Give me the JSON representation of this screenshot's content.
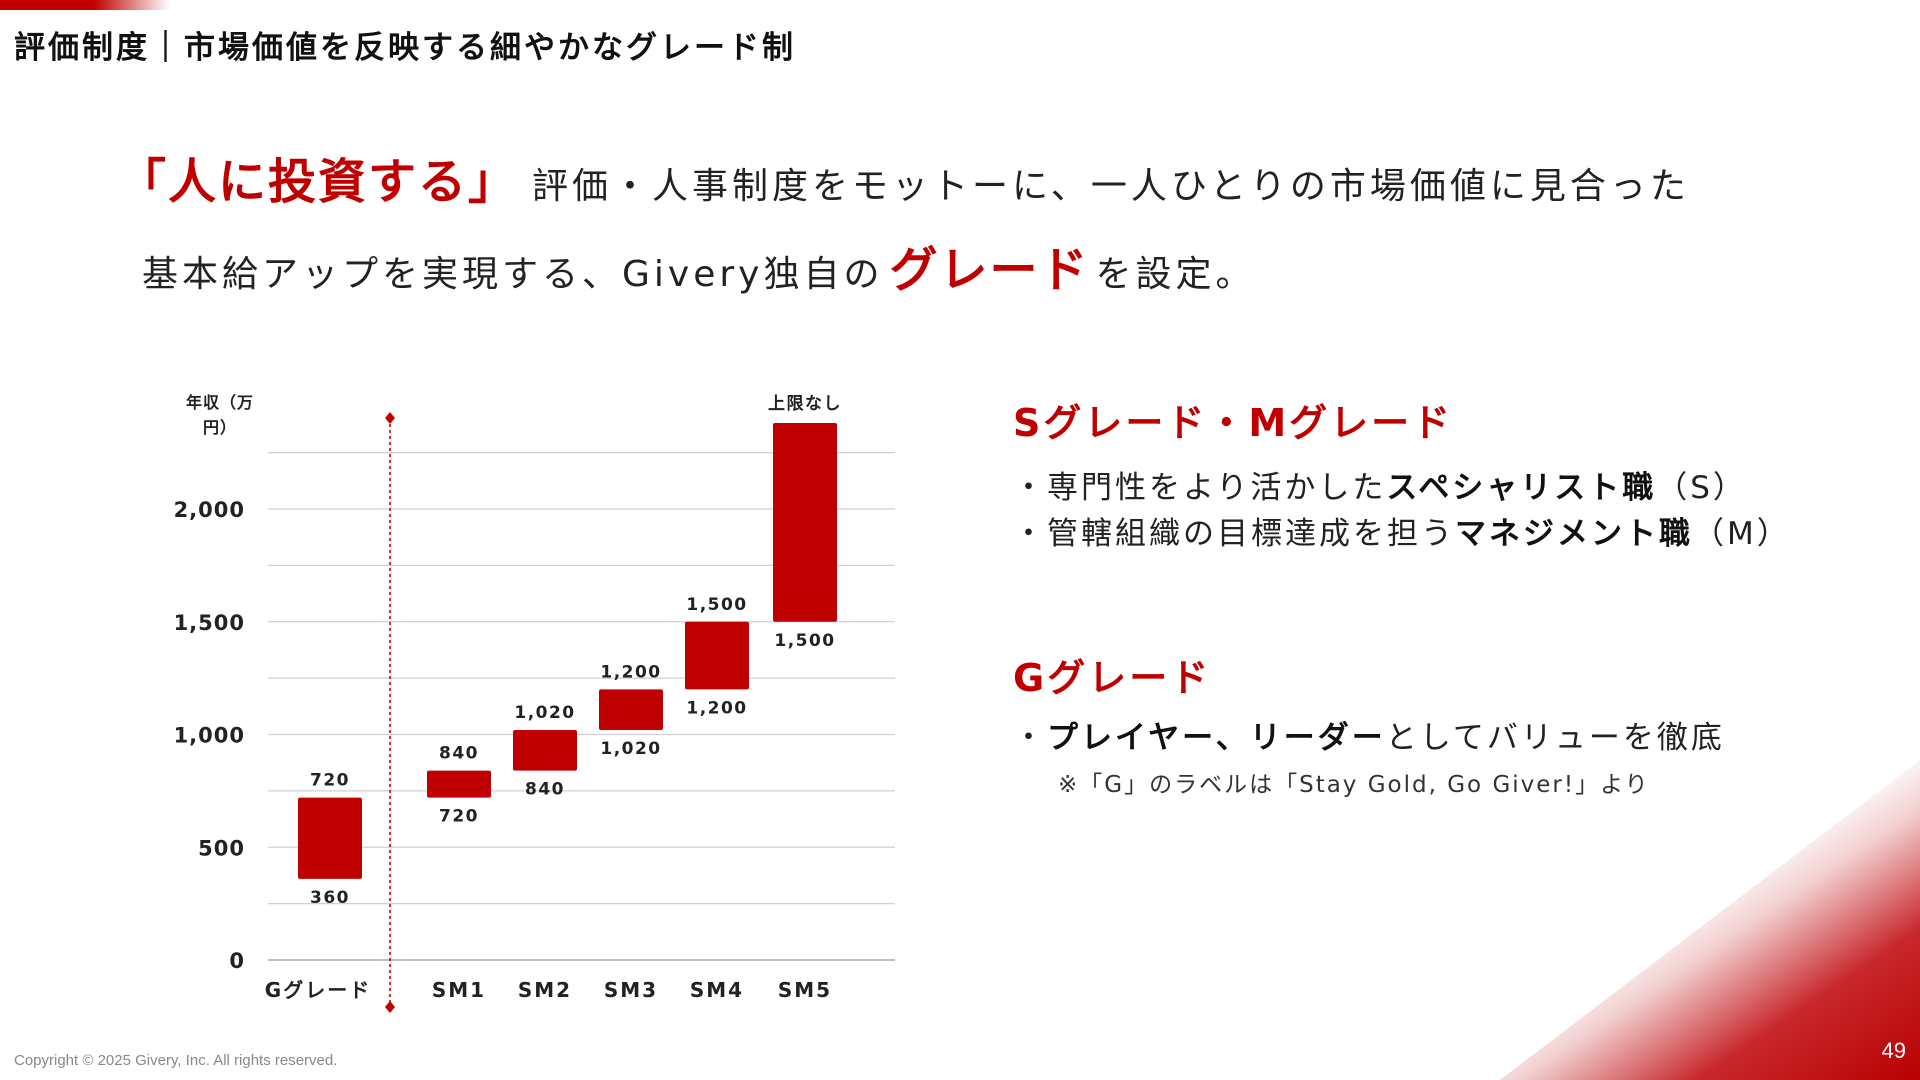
{
  "header": {
    "title": "評価制度｜市場価値を反映する細やかなグレード制"
  },
  "lead": {
    "line1_highlight": "「人に投資する」",
    "line1_rest": "評価・人事制度をモットーに、一人ひとりの市場価値に見合った",
    "line2_pre": "基本給アップを実現する、Givery独自の",
    "line2_highlight": "グレード",
    "line2_post": "を設定。"
  },
  "chart_data": {
    "type": "bar",
    "subtype": "floating-range",
    "ylabel": "年収（万円）",
    "ylim": [
      0,
      2400
    ],
    "yticks": [
      0,
      500,
      1000,
      1500,
      2000
    ],
    "ytick_labels": [
      "0",
      "500",
      "1,000",
      "1,500",
      "2,000"
    ],
    "grid": true,
    "categories": [
      "Gグレード",
      "SM1",
      "SM2",
      "SM3",
      "SM4",
      "SM5"
    ],
    "low": [
      360,
      720,
      840,
      1020,
      1200,
      1500
    ],
    "high": [
      720,
      840,
      1020,
      1200,
      1500,
      null
    ],
    "low_labels": [
      "360",
      "720",
      "840",
      "1,020",
      "1,200",
      "1,500"
    ],
    "high_labels": [
      "720",
      "840",
      "1,020",
      "1,200",
      "1,500",
      "上限なし"
    ],
    "colors": {
      "bar": "#c00000",
      "divider": "#c00000",
      "grid": "#d0d0d0"
    }
  },
  "right": {
    "sm_title": "Sグレード・Mグレード",
    "sm_b1_pre": "・専門性をより活かした",
    "sm_b1_bold": "スペシャリスト職",
    "sm_b1_post": "（S）",
    "sm_b2_pre": "・管轄組織の目標達成を担う",
    "sm_b2_bold": "マネジメント職",
    "sm_b2_post": "（M）",
    "g_title": "Gグレード",
    "g_b1_pre": "・",
    "g_b1_bold": "プレイヤー、リーダー",
    "g_b1_post": "としてバリューを徹底",
    "g_note": "※「G」のラベルは「Stay Gold, Go Giver!」より"
  },
  "footer": {
    "copyright": "Copyright © 2025 Givery, Inc. All rights reserved.",
    "page": "49"
  }
}
